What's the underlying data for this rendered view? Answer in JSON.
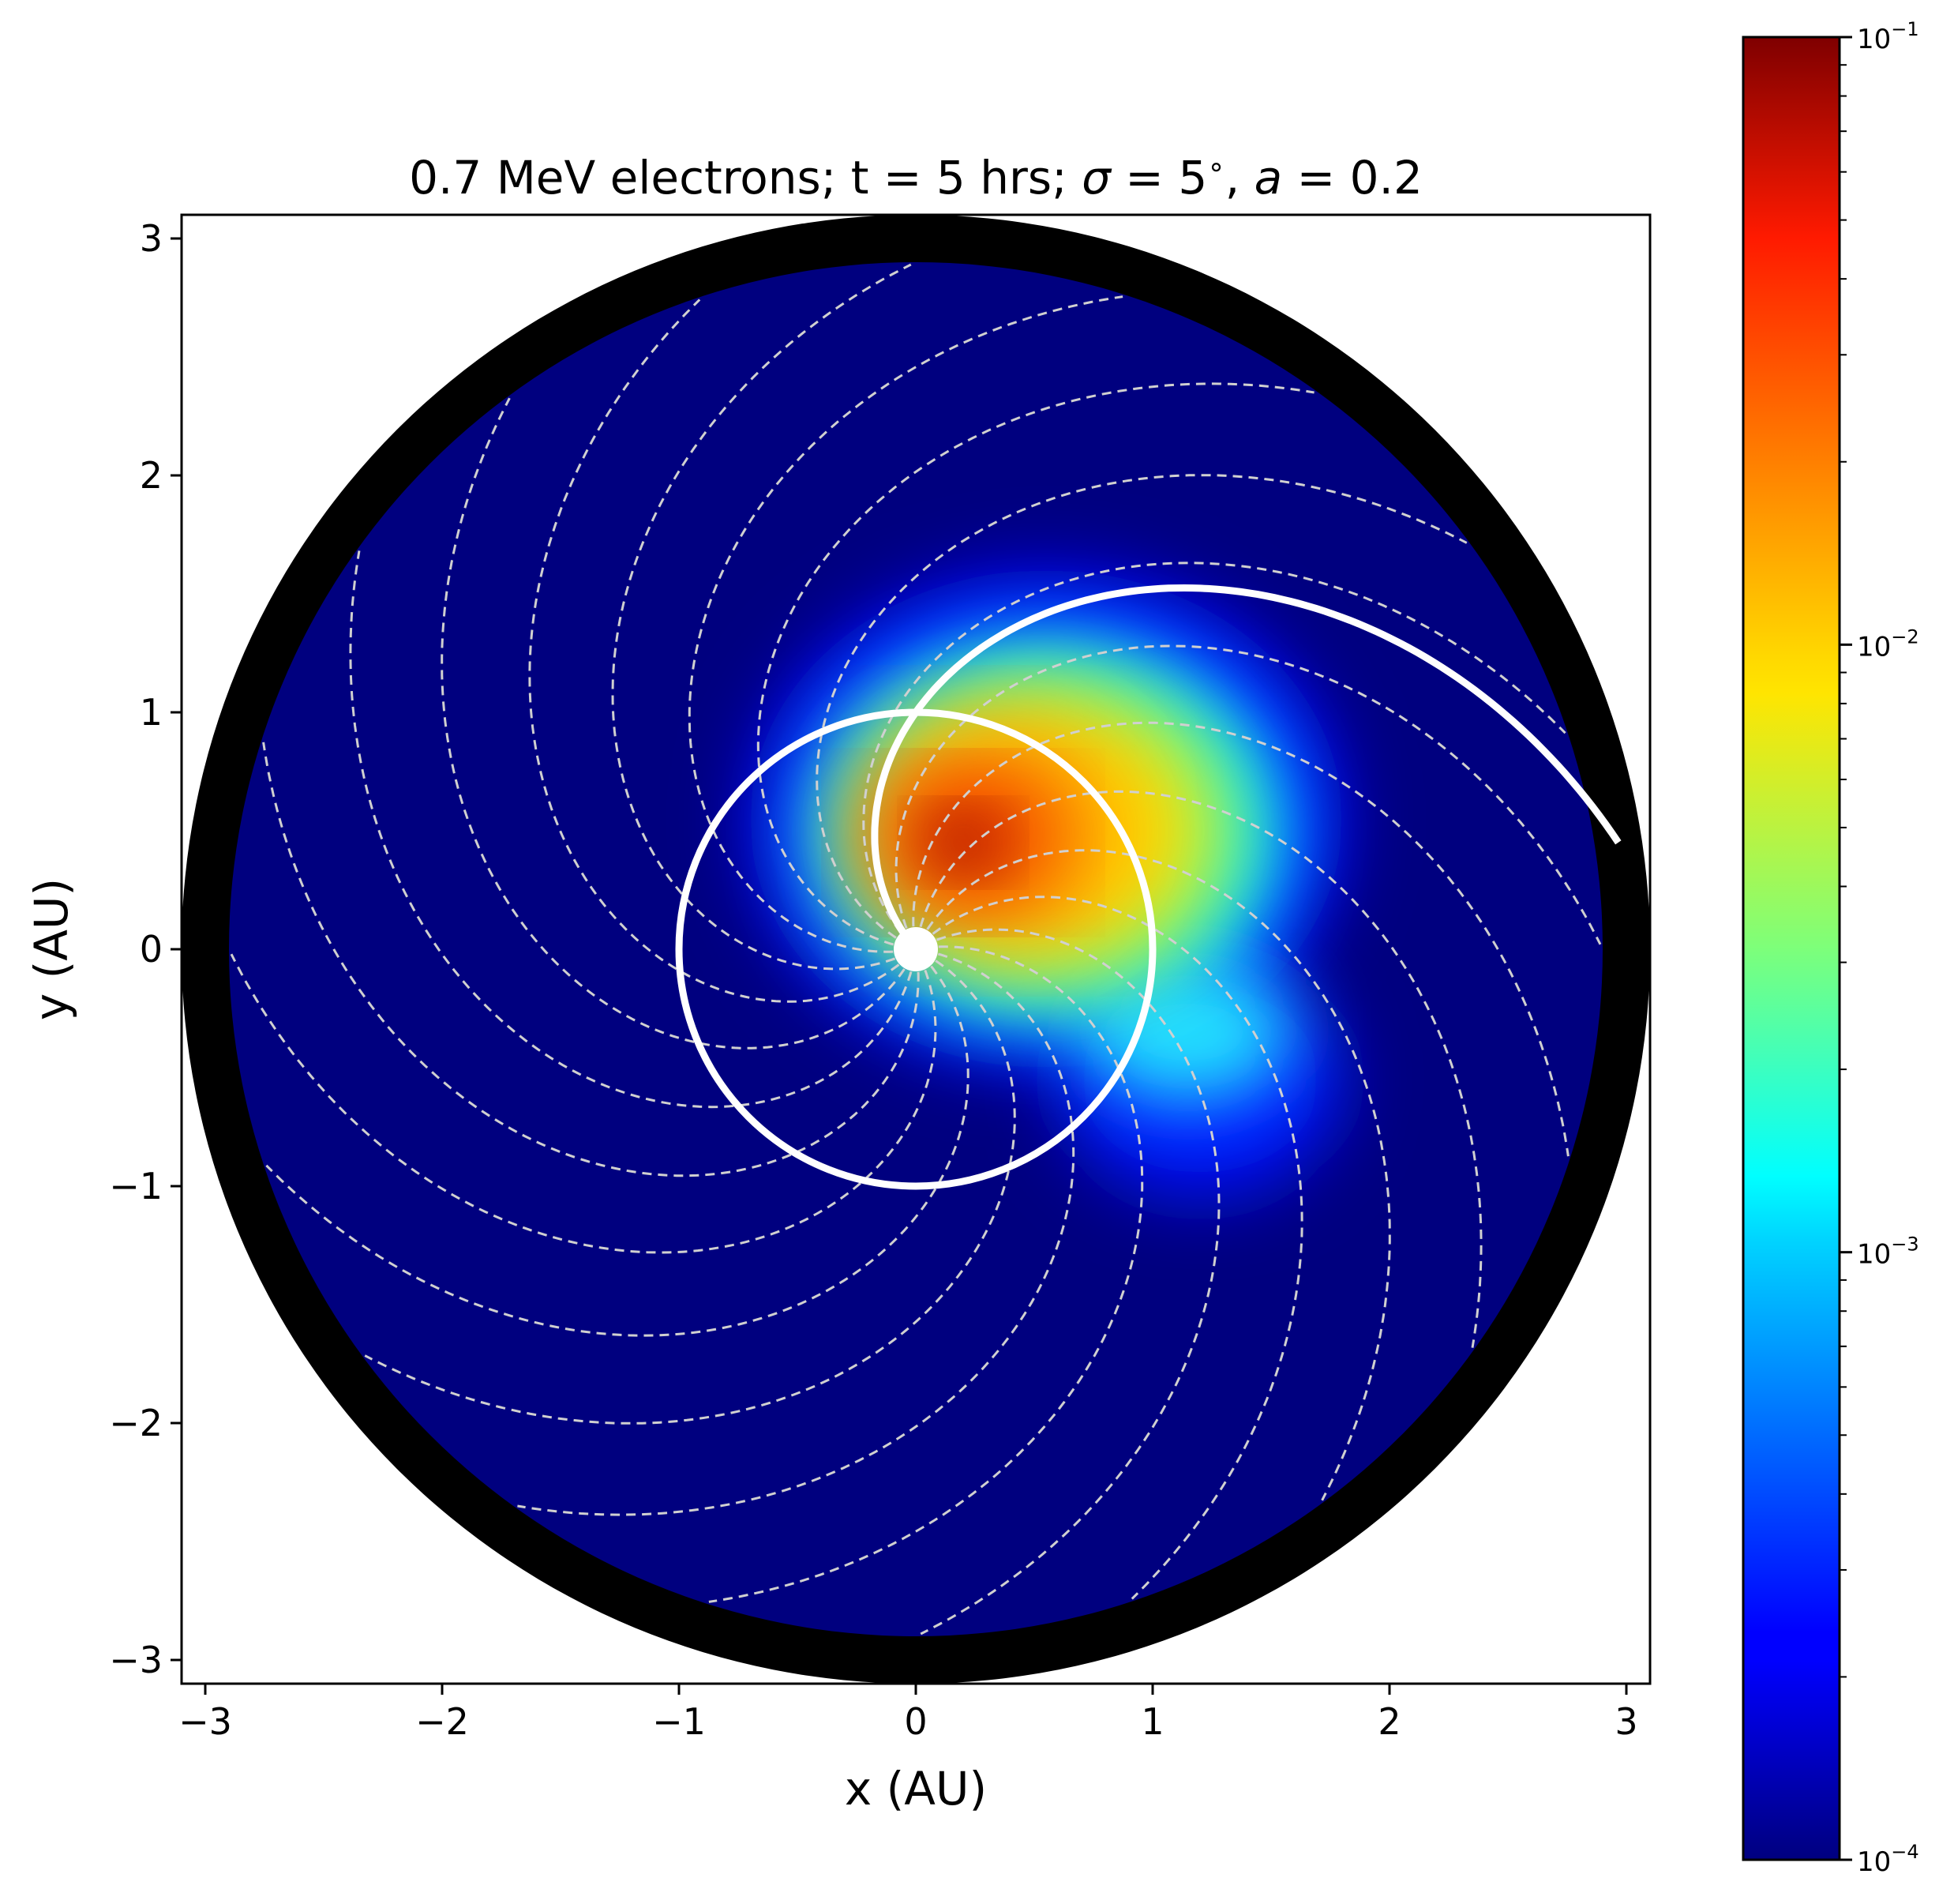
{
  "chart_data": {
    "type": "heatmap",
    "title": "0.7 MeV electrons; t = 5 hrs; σ = 5°, a = 0.2",
    "title_parts": {
      "prefix": "0.7 MeV electrons; t = 5 hrs; ",
      "sigma_symbol": "σ",
      "sigma_eq": " = 5",
      "degree": "∘",
      "comma": ", ",
      "a_symbol": "a",
      "a_eq": " = 0.2"
    },
    "xlabel": "x (AU)",
    "ylabel": "y (AU)",
    "xlim": [
      -3.1,
      3.1
    ],
    "ylim": [
      -3.1,
      3.1
    ],
    "xticks": [
      {
        "value": -3,
        "label": "−3"
      },
      {
        "value": -2,
        "label": "−2"
      },
      {
        "value": -1,
        "label": "−1"
      },
      {
        "value": 0,
        "label": "0"
      },
      {
        "value": 1,
        "label": "1"
      },
      {
        "value": 2,
        "label": "2"
      },
      {
        "value": 3,
        "label": "3"
      }
    ],
    "yticks": [
      {
        "value": -3,
        "label": "−3"
      },
      {
        "value": -2,
        "label": "−2"
      },
      {
        "value": -1,
        "label": "−1"
      },
      {
        "value": 0,
        "label": "0"
      },
      {
        "value": 1,
        "label": "1"
      },
      {
        "value": 2,
        "label": "2"
      },
      {
        "value": 3,
        "label": "3"
      }
    ],
    "grid": false,
    "colormap": "jet",
    "color_scale": "log",
    "color_range": [
      0.0001,
      0.1
    ],
    "colorbar_ticks": [
      {
        "value": 0.1,
        "base": "10",
        "exp": "−1"
      },
      {
        "value": 0.01,
        "base": "10",
        "exp": "−2"
      },
      {
        "value": 0.001,
        "base": "10",
        "exp": "−3"
      },
      {
        "value": 0.0001,
        "base": "10",
        "exp": "−4"
      }
    ],
    "domain_radius_au": 2.9,
    "outer_ring_radius_au": 3.1,
    "peak": {
      "x": 0.2,
      "y": 0.45,
      "value": 0.1
    },
    "earth_orbit_radius_au": 1.0,
    "parker_spiral": {
      "start_angle_deg": 90,
      "end_radius_au": 3.0
    },
    "field_lines_count": 20,
    "colors": {
      "ring": "#000000",
      "background_field": "#00007f",
      "overlay_lines": "#ffffff",
      "dashed_lines": "#d0d0d0"
    }
  }
}
